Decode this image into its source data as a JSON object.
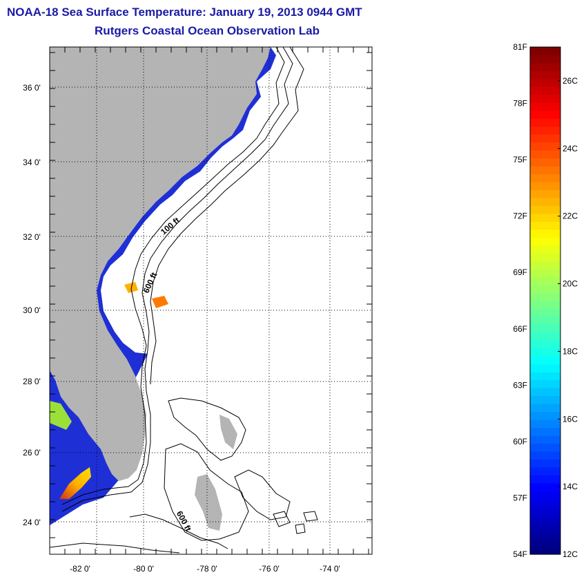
{
  "header": {
    "title_line1": "NOAA-18 Sea Surface Temperature:  January 19, 2013 0944 GMT",
    "title_line2": "Rutgers Coastal Ocean Observation Lab"
  },
  "map": {
    "lat_labels": [
      "36 0'",
      "34 0'",
      "32 0'",
      "30 0'",
      "28 0'",
      "26 0'",
      "24 0'"
    ],
    "lon_labels": [
      "-82 0'",
      "-80 0'",
      "-78 0'",
      "-76 0'",
      "-74 0'"
    ],
    "contour_labels": [
      "100 ft",
      "600 ft",
      "600 ft"
    ],
    "colors": {
      "land": "#b4b4b4",
      "ocean_nodata": "#ffffff",
      "cold_water": "#1f2fd6",
      "deep_blue": "#0b1a8a",
      "contour": "#000000"
    }
  },
  "colorbar": {
    "fahrenheit_labels": [
      "81F",
      "78F",
      "75F",
      "72F",
      "69F",
      "66F",
      "63F",
      "60F",
      "57F",
      "54F"
    ],
    "celsius_labels": [
      "26C",
      "24C",
      "22C",
      "20C",
      "18C",
      "16C",
      "14C",
      "12C"
    ],
    "range_f": [
      54,
      81
    ],
    "range_c": [
      12,
      27
    ]
  }
}
